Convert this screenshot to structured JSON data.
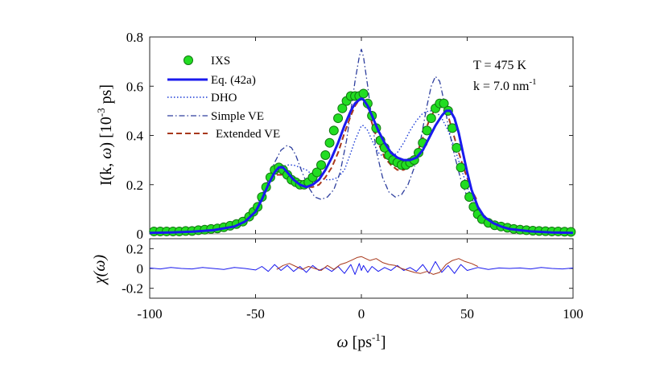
{
  "chart_data": [
    {
      "type": "line",
      "panel": "main",
      "ylabel": "I(k, ω)  [10^-3 ps]",
      "xlim": [
        -100,
        100
      ],
      "ylim": [
        0,
        0.8
      ],
      "yticks": [
        0,
        0.2,
        0.4,
        0.6,
        0.8
      ],
      "ytick_labels": [
        "0",
        "0.2",
        "0.4",
        "0.6",
        "0.8"
      ],
      "annotations": {
        "temperature": "T = 475 K",
        "wavevector_prefix": "k = 7.0 nm",
        "wavevector_exp": "-1"
      },
      "legend": {
        "position": "top-left",
        "entries": [
          {
            "key": "ixs",
            "label": "IXS"
          },
          {
            "key": "eq42a",
            "label": "Eq. (42a)"
          },
          {
            "key": "dho",
            "label": "DHO"
          },
          {
            "key": "simple_ve",
            "label": "Simple VE"
          },
          {
            "key": "extended_ve",
            "label": "Extended VE"
          }
        ]
      },
      "series": [
        {
          "key": "ixs",
          "name": "IXS",
          "kind": "scatter",
          "color": "#22dd22",
          "edge": "#117711",
          "x": [
            -98,
            -95,
            -92,
            -89,
            -86,
            -83,
            -80,
            -77,
            -74,
            -71,
            -68,
            -65,
            -62,
            -59,
            -56,
            -53,
            -51,
            -49,
            -47,
            -45,
            -43,
            -41,
            -39,
            -37,
            -35,
            -33,
            -31,
            -29,
            -27,
            -25,
            -23,
            -21,
            -19,
            -17,
            -15,
            -13,
            -11,
            -9,
            -7,
            -5,
            -3,
            -1,
            1,
            3,
            5,
            7,
            9,
            11,
            13,
            15,
            17,
            19,
            21,
            23,
            25,
            27,
            29,
            31,
            33,
            35,
            37,
            39,
            41,
            43,
            45,
            47,
            49,
            51,
            53,
            55,
            57,
            60,
            63,
            66,
            69,
            72,
            75,
            78,
            81,
            84,
            87,
            90,
            93,
            96,
            99
          ],
          "y": [
            0.01,
            0.01,
            0.01,
            0.01,
            0.01,
            0.012,
            0.012,
            0.015,
            0.017,
            0.02,
            0.022,
            0.027,
            0.033,
            0.04,
            0.05,
            0.07,
            0.09,
            0.11,
            0.15,
            0.19,
            0.23,
            0.26,
            0.27,
            0.26,
            0.24,
            0.22,
            0.21,
            0.2,
            0.2,
            0.21,
            0.23,
            0.25,
            0.28,
            0.32,
            0.37,
            0.42,
            0.47,
            0.51,
            0.54,
            0.56,
            0.56,
            0.56,
            0.57,
            0.53,
            0.48,
            0.43,
            0.38,
            0.35,
            0.32,
            0.3,
            0.29,
            0.28,
            0.28,
            0.29,
            0.3,
            0.33,
            0.37,
            0.42,
            0.47,
            0.51,
            0.53,
            0.53,
            0.5,
            0.43,
            0.35,
            0.27,
            0.2,
            0.15,
            0.11,
            0.08,
            0.06,
            0.045,
            0.035,
            0.03,
            0.025,
            0.02,
            0.017,
            0.015,
            0.013,
            0.012,
            0.011,
            0.01,
            0.01,
            0.009,
            0.008
          ]
        },
        {
          "key": "eq42a",
          "name": "Eq. (42a)",
          "kind": "line",
          "color": "#1a1aee",
          "x": [
            -100,
            -90,
            -80,
            -70,
            -60,
            -55,
            -50,
            -47,
            -44,
            -41,
            -39,
            -37,
            -35,
            -32,
            -29,
            -26,
            -23,
            -20,
            -17,
            -14,
            -11,
            -8,
            -5,
            -3,
            -1,
            0,
            1,
            3,
            5,
            8,
            11,
            14,
            17,
            20,
            23,
            26,
            29,
            32,
            35,
            38,
            40,
            42,
            44,
            46,
            48,
            50,
            52,
            55,
            58,
            62,
            66,
            70,
            80,
            90,
            100
          ],
          "y": [
            0.004,
            0.006,
            0.009,
            0.015,
            0.03,
            0.05,
            0.09,
            0.14,
            0.2,
            0.25,
            0.27,
            0.27,
            0.25,
            0.22,
            0.2,
            0.19,
            0.2,
            0.22,
            0.26,
            0.31,
            0.37,
            0.44,
            0.5,
            0.53,
            0.545,
            0.55,
            0.545,
            0.52,
            0.48,
            0.42,
            0.37,
            0.33,
            0.31,
            0.3,
            0.3,
            0.31,
            0.34,
            0.39,
            0.44,
            0.48,
            0.5,
            0.5,
            0.47,
            0.41,
            0.33,
            0.25,
            0.18,
            0.11,
            0.07,
            0.045,
            0.03,
            0.02,
            0.01,
            0.006,
            0.004
          ]
        },
        {
          "key": "dho",
          "name": "DHO",
          "kind": "line",
          "color": "#1a3ad6",
          "x": [
            -100,
            -90,
            -80,
            -70,
            -60,
            -55,
            -50,
            -47,
            -44,
            -41,
            -38,
            -35,
            -32,
            -29,
            -26,
            -23,
            -20,
            -17,
            -14,
            -11,
            -8,
            -5,
            -3,
            -1,
            0,
            1,
            3,
            5,
            8,
            11,
            14,
            17,
            20,
            23,
            26,
            29,
            32,
            35,
            38,
            41,
            44,
            47,
            50,
            53,
            56,
            60,
            65,
            70,
            80,
            90,
            100
          ],
          "y": [
            0.005,
            0.008,
            0.012,
            0.02,
            0.04,
            0.07,
            0.11,
            0.16,
            0.21,
            0.25,
            0.27,
            0.28,
            0.28,
            0.27,
            0.26,
            0.24,
            0.23,
            0.22,
            0.22,
            0.23,
            0.26,
            0.33,
            0.38,
            0.42,
            0.44,
            0.44,
            0.42,
            0.38,
            0.33,
            0.31,
            0.31,
            0.33,
            0.37,
            0.42,
            0.46,
            0.49,
            0.5,
            0.5,
            0.47,
            0.42,
            0.35,
            0.27,
            0.19,
            0.13,
            0.09,
            0.055,
            0.035,
            0.02,
            0.01,
            0.007,
            0.005
          ]
        },
        {
          "key": "simple_ve",
          "name": "Simple VE",
          "kind": "line",
          "color": "#2e3f9e",
          "x": [
            -100,
            -90,
            -80,
            -70,
            -60,
            -55,
            -50,
            -47,
            -44,
            -41,
            -38,
            -35,
            -33,
            -31,
            -28,
            -25,
            -22,
            -19,
            -16,
            -13,
            -10,
            -7,
            -5,
            -3,
            -1,
            0,
            1,
            3,
            5,
            7,
            10,
            13,
            16,
            19,
            22,
            25,
            28,
            31,
            33,
            35,
            37,
            39,
            41,
            44,
            47,
            50,
            55,
            60,
            70,
            80,
            90,
            100
          ],
          "y": [
            0.004,
            0.006,
            0.009,
            0.015,
            0.035,
            0.06,
            0.1,
            0.15,
            0.22,
            0.29,
            0.34,
            0.36,
            0.35,
            0.32,
            0.25,
            0.19,
            0.15,
            0.14,
            0.15,
            0.18,
            0.25,
            0.38,
            0.5,
            0.62,
            0.72,
            0.75,
            0.72,
            0.6,
            0.46,
            0.34,
            0.23,
            0.17,
            0.15,
            0.16,
            0.2,
            0.27,
            0.38,
            0.52,
            0.6,
            0.64,
            0.62,
            0.54,
            0.44,
            0.32,
            0.22,
            0.15,
            0.09,
            0.05,
            0.025,
            0.012,
            0.007,
            0.005
          ]
        },
        {
          "key": "extended_ve",
          "name": "Extended VE",
          "kind": "line",
          "color": "#a8381b",
          "x": [
            -40,
            -36,
            -32,
            -29,
            -26,
            -23,
            -20,
            -17,
            -14,
            -11,
            -8,
            -5,
            -3,
            -1,
            0,
            1,
            3,
            5,
            8,
            11,
            14,
            17,
            20,
            23,
            26,
            29,
            32,
            35,
            37,
            39,
            41,
            43,
            46,
            49,
            52,
            55
          ],
          "y": [
            0.24,
            0.24,
            0.22,
            0.2,
            0.19,
            0.19,
            0.2,
            0.23,
            0.27,
            0.33,
            0.41,
            0.48,
            0.52,
            0.545,
            0.55,
            0.545,
            0.51,
            0.45,
            0.37,
            0.31,
            0.28,
            0.26,
            0.26,
            0.28,
            0.32,
            0.39,
            0.46,
            0.51,
            0.53,
            0.52,
            0.48,
            0.42,
            0.33,
            0.25,
            0.18,
            0.13
          ]
        }
      ]
    },
    {
      "type": "line",
      "panel": "residual",
      "ylabel": "χ(ω)",
      "xlabel": "ω  [ps^-1]",
      "xlim": [
        -100,
        100
      ],
      "ylim": [
        -0.3,
        0.3
      ],
      "xticks": [
        -100,
        -50,
        0,
        50,
        100
      ],
      "xtick_labels": [
        "-100",
        "-50",
        "0",
        "50",
        "100"
      ],
      "yticks": [
        -0.2,
        0,
        0.2
      ],
      "ytick_labels": [
        "-0.2",
        "0",
        "0.2"
      ],
      "series": [
        {
          "key": "residual_eq42a",
          "name": "Eq. (42a) residual",
          "color": "#1a1aee",
          "x": [
            -100,
            -95,
            -90,
            -85,
            -80,
            -75,
            -70,
            -65,
            -60,
            -55,
            -50,
            -47,
            -44,
            -41,
            -38,
            -35,
            -32,
            -29,
            -26,
            -23,
            -20,
            -17,
            -14,
            -11,
            -8,
            -5,
            -3,
            -1,
            0,
            1,
            3,
            5,
            8,
            11,
            14,
            17,
            20,
            23,
            26,
            29,
            32,
            35,
            38,
            41,
            44,
            47,
            50,
            55,
            60,
            65,
            70,
            75,
            80,
            85,
            90,
            95,
            100
          ],
          "y": [
            0.005,
            -0.005,
            0.01,
            0,
            -0.005,
            0.01,
            0,
            -0.01,
            0.01,
            0,
            -0.015,
            0.02,
            -0.03,
            0.04,
            -0.02,
            0.03,
            -0.03,
            0.02,
            -0.04,
            0.03,
            -0.02,
            0.01,
            -0.03,
            0.02,
            -0.05,
            0.04,
            -0.06,
            0.05,
            -0.02,
            0.03,
            -0.04,
            0.02,
            -0.03,
            0.01,
            -0.02,
            0.03,
            -0.02,
            0.01,
            -0.03,
            0.04,
            -0.05,
            0.07,
            -0.04,
            0.03,
            -0.05,
            0.04,
            -0.02,
            0.01,
            -0.01,
            0.005,
            0,
            0.005,
            -0.005,
            0.01,
            0,
            -0.005,
            0.005
          ]
        },
        {
          "key": "residual_extended",
          "name": "Extended VE residual",
          "color": "#a8381b",
          "x": [
            -40,
            -37,
            -34,
            -31,
            -28,
            -25,
            -22,
            -19,
            -16,
            -13,
            -10,
            -7,
            -4,
            -2,
            0,
            2,
            4,
            7,
            10,
            13,
            16,
            19,
            22,
            25,
            28,
            31,
            34,
            37,
            40,
            43,
            46,
            49,
            52,
            55
          ],
          "y": [
            -0.01,
            0.03,
            0.05,
            0.02,
            -0.01,
            0.02,
            0,
            -0.02,
            0.03,
            -0.01,
            0.04,
            0.06,
            0.09,
            0.11,
            0.12,
            0.1,
            0.08,
            0.1,
            0.06,
            0.04,
            0.03,
            0,
            -0.02,
            -0.04,
            -0.05,
            -0.03,
            -0.06,
            -0.04,
            0.04,
            0.08,
            0.1,
            0.07,
            0.05,
            0.02
          ]
        }
      ]
    }
  ]
}
